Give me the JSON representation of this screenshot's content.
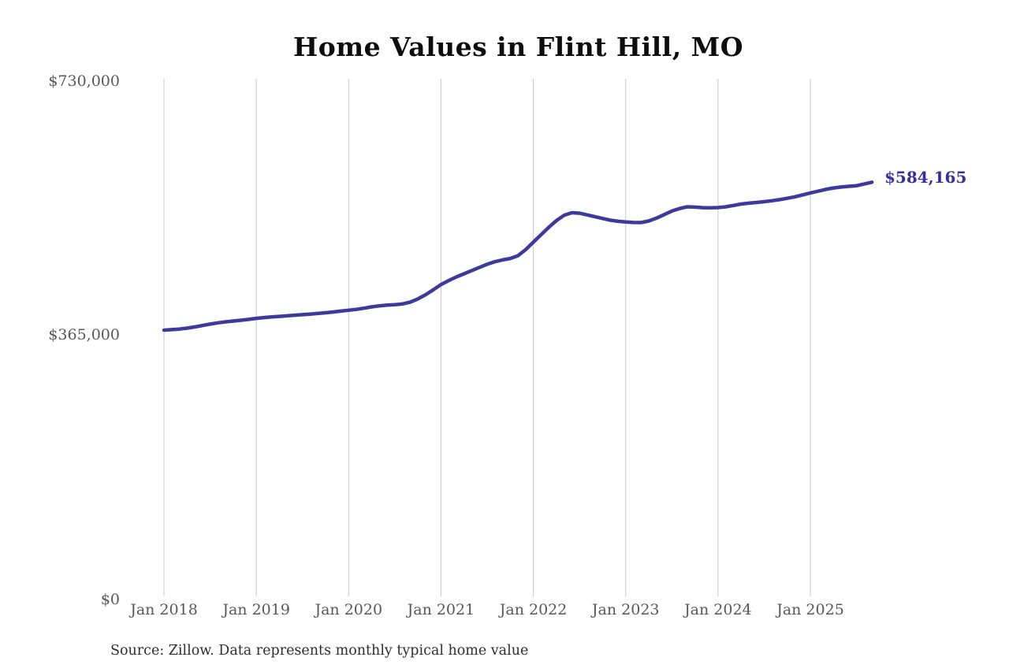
{
  "page": {
    "background_color": "#ffffff"
  },
  "header": {
    "title": "Home Values in Flint Hill, MO"
  },
  "footer": {
    "source_note": "Source: Zillow. Data represents monthly typical home value"
  },
  "chart_data": {
    "type": "line",
    "title": "Home Values in Flint Hill, MO",
    "series_name": "Monthly typical home value",
    "x_start": "Jan 2018",
    "x_end": "Sep 2025",
    "x_frequency": "monthly",
    "x_tick_labels": [
      "Jan 2018",
      "Jan 2019",
      "Jan 2020",
      "Jan 2021",
      "Jan 2022",
      "Jan 2023",
      "Jan 2024",
      "Jan 2025"
    ],
    "y_tick_labels": [
      "$730,000",
      "$365,000",
      "$0"
    ],
    "y_ticks": [
      730000,
      365000,
      0
    ],
    "ylim": [
      0,
      730000
    ],
    "grid": "vertical-only",
    "end_label": "$584,165",
    "last_value": 584165,
    "line_color": "#3e3a9c",
    "end_label_color": "#34319b",
    "grid_color": "#c7c7c7",
    "tick_text_color": "#57585a",
    "values": [
      375500,
      376200,
      377000,
      378300,
      380000,
      382000,
      384000,
      385800,
      387200,
      388300,
      389400,
      390700,
      392100,
      393200,
      394100,
      394900,
      395700,
      396500,
      397300,
      398100,
      399000,
      400000,
      401100,
      402300,
      403500,
      404800,
      406500,
      408300,
      409800,
      410800,
      411500,
      412500,
      415000,
      419500,
      425500,
      432500,
      439800,
      445500,
      450500,
      455000,
      459500,
      464000,
      468500,
      472000,
      474500,
      476500,
      480500,
      489000,
      499500,
      510000,
      520500,
      530000,
      537500,
      541100,
      540500,
      538000,
      535500,
      533000,
      530500,
      529000,
      528000,
      527300,
      527200,
      529500,
      533500,
      538500,
      543500,
      547000,
      549400,
      549000,
      548200,
      548100,
      548300,
      549500,
      551300,
      553300,
      554500,
      555600,
      556700,
      558000,
      559600,
      561400,
      563600,
      566200,
      569000,
      571500,
      574000,
      576000,
      577300,
      578300,
      579200,
      581500,
      584165
    ]
  }
}
